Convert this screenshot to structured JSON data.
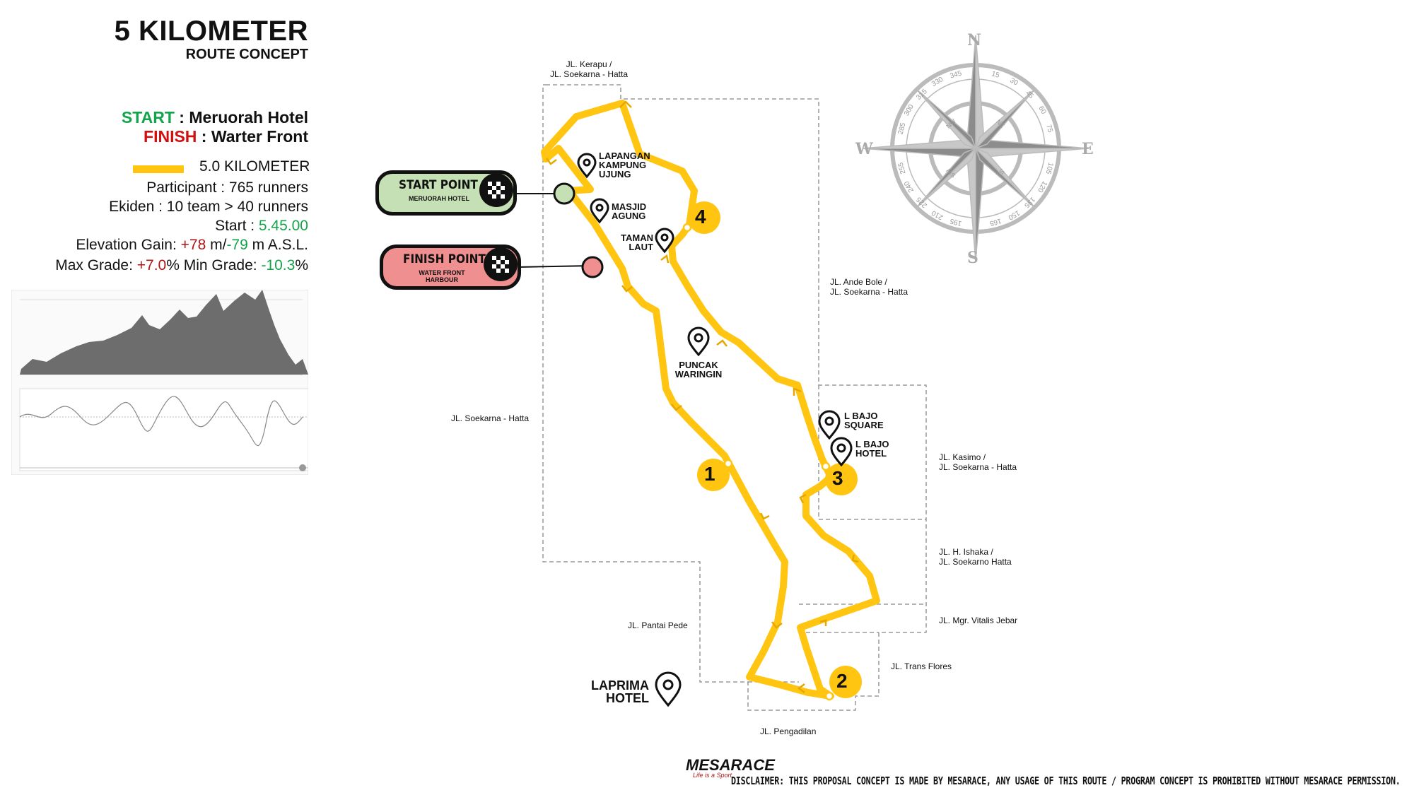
{
  "header": {
    "title": "5 KILOMETER",
    "subtitle": "ROUTE CONCEPT"
  },
  "info": {
    "start_label": "START",
    "start_value": " : Meruorah Hotel",
    "finish_label": "FINISH",
    "finish_value": " : Warter Front",
    "legend_label": "5.0 KILOMETER",
    "participant": "Participant : 765 runners",
    "ekiden": "Ekiden : 10 team > 40 runners",
    "start_time_label": "Start : ",
    "start_time": "5.45.00",
    "elev_label": "Elevation Gain: ",
    "elev_plus": "+78",
    "elev_mid": " m/",
    "elev_minus": "-79",
    "elev_unit": " m A.S.L.",
    "max_grade_label": "Max Grade: ",
    "max_grade": "+7.0",
    "max_grade_unit": "%  Min Grade: ",
    "min_grade": "-10.3",
    "min_grade_unit": "%"
  },
  "points": {
    "start_title": "START POINT",
    "start_sub": "MERUORAH HOTEL",
    "finish_title": "FINISH POINT",
    "finish_sub": "WATER FRONT HARBOUR"
  },
  "streets": {
    "kerapu": "JL. Kerapu /\nJL. Soekarna - Hatta",
    "andebole": "JL. Ande Bole /\nJL. Soekarna - Hatta",
    "soekarna": "JL. Soekarna - Hatta",
    "kasimo": "JL. Kasimo /\nJL. Soekarna - Hatta",
    "ishaka": "JL. H. Ishaka /\nJL. Soekarno Hatta",
    "vitalis": "JL. Mgr. Vitalis Jebar",
    "transflores": "JL. Trans Flores",
    "pantaipede": "JL. Pantai Pede",
    "pengadilan": "JL. Pengadilan"
  },
  "pois": {
    "lapangan": "LAPANGAN\nKAMPUNG\nUJUNG",
    "masjid": "MASJID\nAGUNG",
    "taman": "TAMAN\nLAUT",
    "puncak": "PUNCAK\nWARINGIN",
    "lbajo_square": "L BAJO\nSQUARE",
    "lbajo_hotel": "L BAJO\nHOTEL",
    "laprima": "LAPRIMA\nHOTEL"
  },
  "markers": [
    "1",
    "2",
    "3",
    "4"
  ],
  "compass": {
    "n": "N",
    "s": "S",
    "e": "E",
    "w": "W",
    "degrees": [
      "15",
      "30",
      "45",
      "60",
      "75",
      "105",
      "120",
      "135",
      "150",
      "165",
      "195",
      "210",
      "225",
      "240",
      "255",
      "285",
      "300",
      "315",
      "330",
      "345"
    ],
    "inner": [
      "NE",
      "SE",
      "SW",
      "NW"
    ]
  },
  "footer": {
    "logo": "MESARACE",
    "tagline": "Life is a Sport",
    "disclaimer": "DISCLAIMER: THIS PROPOSAL CONCEPT IS MADE BY MESARACE, ANY USAGE OF THIS ROUTE / PROGRAM CONCEPT IS PROHIBITED WITHOUT MESARACE PERMISSION."
  },
  "colors": {
    "route": "#ffc511",
    "start_fill": "#c5e0b4",
    "finish_fill": "#f08f8f",
    "green_text": "#13a34a",
    "red_text": "#d10f0f"
  }
}
